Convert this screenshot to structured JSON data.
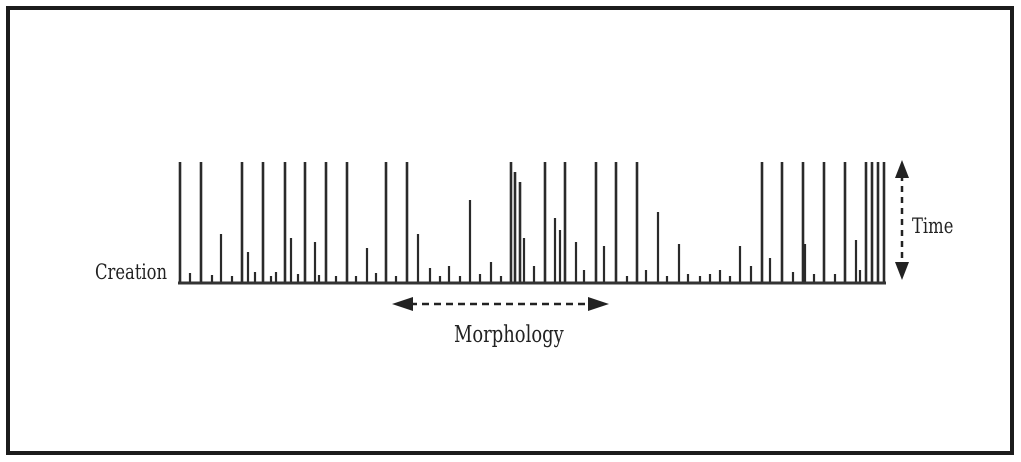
{
  "diagram": {
    "labels": {
      "creation": "Creation",
      "time": "Time",
      "morphology": "Morphology"
    },
    "ink_color": "#2a2a2a",
    "frame_color": "#1c1c1c"
  }
}
